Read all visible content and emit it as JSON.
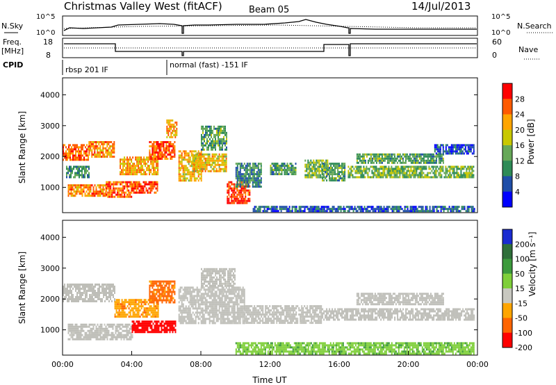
{
  "header": {
    "title": "Christmas Valley West (fitACF)",
    "beam": "Beam 05",
    "date": "14/Jul/2013"
  },
  "top_panels": {
    "nsky_label": "N.Sky",
    "nsky_ticks": [
      "10^5",
      "10^0"
    ],
    "nsearch_label": "N.Search",
    "nsearch_ticks": [
      "10^5",
      "10^0"
    ],
    "freq_label": "Freq.",
    "freq_unit": "[MHz]",
    "freq_ticks": [
      "18",
      "8"
    ],
    "nave_label": "Nave",
    "nave_ticks": [
      "60",
      "0"
    ],
    "cpid_label": "CPID",
    "cpid_entries": [
      "rbsp 201 IF",
      "normal (fast) -151 IF"
    ]
  },
  "colors": {
    "power_scale": [
      "#0000ff",
      "#1f4ea8",
      "#2e8b57",
      "#66a858",
      "#c8c800",
      "#ffa500",
      "#ff5a00",
      "#ff0000"
    ],
    "velocity_scale": [
      "#1a2bd1",
      "#2f6f3a",
      "#3c9a3c",
      "#7fcf3a",
      "#c8c8c0",
      "#ffa500",
      "#ff6400",
      "#ff0000"
    ],
    "ground_scatter": "#bebeb8"
  },
  "chart_data": [
    {
      "type": "heatmap",
      "variable": "power",
      "ylabel": "Slant Range [km]",
      "yticks": [
        "4000",
        "3000",
        "2000",
        "1000"
      ],
      "ylim": [
        180,
        4550
      ],
      "xlim": [
        0,
        24
      ],
      "colorbar_label": "Power [dB]",
      "colorbar_ticks": [
        "28",
        "24",
        "20",
        "16",
        "12",
        "8",
        "4"
      ],
      "colorbar_range": [
        0,
        32
      ],
      "scatter_regions": [
        {
          "x": [
            0.0,
            1.5
          ],
          "y": [
            1900,
            2400
          ],
          "value": 26
        },
        {
          "x": [
            1.5,
            3.0
          ],
          "y": [
            2000,
            2500
          ],
          "value": 24
        },
        {
          "x": [
            0.2,
            1.5
          ],
          "y": [
            1300,
            1700
          ],
          "value": 10
        },
        {
          "x": [
            0.3,
            2.5
          ],
          "y": [
            700,
            1100
          ],
          "value": 24
        },
        {
          "x": [
            2.5,
            4.0
          ],
          "y": [
            700,
            1200
          ],
          "value": 26
        },
        {
          "x": [
            3.3,
            5.5
          ],
          "y": [
            1400,
            2000
          ],
          "value": 22
        },
        {
          "x": [
            4.0,
            5.5
          ],
          "y": [
            800,
            1200
          ],
          "value": 28
        },
        {
          "x": [
            5.0,
            6.5
          ],
          "y": [
            1900,
            2500
          ],
          "value": 26
        },
        {
          "x": [
            6.0,
            6.6
          ],
          "y": [
            2600,
            3200
          ],
          "value": 22
        },
        {
          "x": [
            6.7,
            8.0
          ],
          "y": [
            1200,
            2200
          ],
          "value": 20
        },
        {
          "x": [
            7.5,
            9.5
          ],
          "y": [
            1500,
            2100
          ],
          "value": 20
        },
        {
          "x": [
            8.0,
            9.5
          ],
          "y": [
            2200,
            3000
          ],
          "value": 12
        },
        {
          "x": [
            9.5,
            10.8
          ],
          "y": [
            500,
            1200
          ],
          "value": 28
        },
        {
          "x": [
            10.0,
            11.5
          ],
          "y": [
            1000,
            1800
          ],
          "value": 10
        },
        {
          "x": [
            12.0,
            13.5
          ],
          "y": [
            1400,
            1800
          ],
          "value": 12
        },
        {
          "x": [
            14.0,
            15.3
          ],
          "y": [
            1300,
            1900
          ],
          "value": 14
        },
        {
          "x": [
            15.0,
            16.3
          ],
          "y": [
            1200,
            1800
          ],
          "value": 12
        },
        {
          "x": [
            16.5,
            23.8
          ],
          "y": [
            1300,
            1700
          ],
          "value": 14
        },
        {
          "x": [
            17.0,
            22.0
          ],
          "y": [
            1800,
            2100
          ],
          "value": 12
        },
        {
          "x": [
            21.5,
            23.8
          ],
          "y": [
            2100,
            2400
          ],
          "value": 6
        },
        {
          "x": [
            11.0,
            23.8
          ],
          "y": [
            200,
            400
          ],
          "value": 6
        }
      ]
    },
    {
      "type": "heatmap",
      "variable": "velocity",
      "ylabel": "Slant Range [km]",
      "yticks": [
        "4000",
        "3000",
        "2000",
        "1000"
      ],
      "ylim": [
        180,
        4550
      ],
      "xlim": [
        0,
        24
      ],
      "xlabel": "Time UT",
      "xticks": [
        "00:00",
        "04:00",
        "08:00",
        "12:00",
        "16:00",
        "20:00",
        "00:00"
      ],
      "colorbar_label": "Velocity [m s⁻¹]",
      "colorbar_ticks": [
        "200",
        "100",
        "50",
        "15",
        "-15",
        "-50",
        "-100",
        "-200"
      ],
      "colorbar_range": [
        -250,
        250
      ],
      "scatter_regions": [
        {
          "x": [
            0.0,
            3.0
          ],
          "y": [
            1900,
            2500
          ],
          "value": 0
        },
        {
          "x": [
            0.3,
            4.0
          ],
          "y": [
            700,
            1200
          ],
          "value": 0
        },
        {
          "x": [
            3.0,
            5.5
          ],
          "y": [
            1400,
            2000
          ],
          "value": -40
        },
        {
          "x": [
            4.0,
            6.5
          ],
          "y": [
            900,
            1300
          ],
          "value": -220
        },
        {
          "x": [
            5.0,
            6.5
          ],
          "y": [
            1900,
            2600
          ],
          "value": -60
        },
        {
          "x": [
            6.7,
            10.5
          ],
          "y": [
            1200,
            2400
          ],
          "value": 0
        },
        {
          "x": [
            8.0,
            10.0
          ],
          "y": [
            2400,
            3000
          ],
          "value": 0
        },
        {
          "x": [
            10.5,
            15.0
          ],
          "y": [
            1200,
            1800
          ],
          "value": 0
        },
        {
          "x": [
            15.0,
            23.8
          ],
          "y": [
            1300,
            1700
          ],
          "value": 0
        },
        {
          "x": [
            17.0,
            22.0
          ],
          "y": [
            1800,
            2200
          ],
          "value": 0
        },
        {
          "x": [
            10.0,
            23.8
          ],
          "y": [
            200,
            600
          ],
          "value": 40
        }
      ]
    }
  ]
}
